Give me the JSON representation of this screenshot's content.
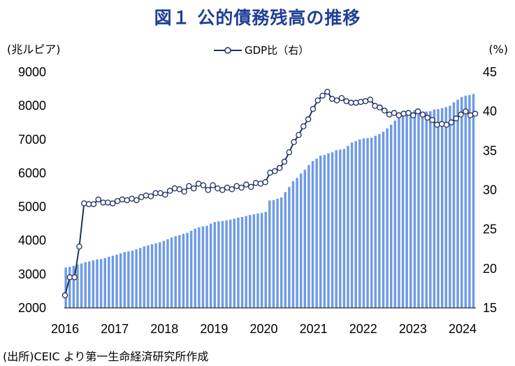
{
  "title": "図１ 公的債務残高の推移",
  "source": "(出所)CEIC より第一生命経済研究所作成",
  "chart_data": {
    "type": "bar",
    "title": "図１ 公的債務残高の推移",
    "left_axis_unit": "(兆ルピア)",
    "right_axis_unit": "(%)",
    "ylim_left": [
      2000,
      9000
    ],
    "yticks_left": [
      2000,
      3000,
      4000,
      5000,
      6000,
      7000,
      8000,
      9000
    ],
    "ylim_right": [
      15,
      45
    ],
    "yticks_right": [
      15,
      20,
      25,
      30,
      35,
      40,
      45
    ],
    "x_ticks": [
      "2016",
      "2017",
      "2018",
      "2019",
      "2020",
      "2021",
      "2022",
      "2023",
      "2024"
    ],
    "grid": false,
    "bar_color": "#6f9be6",
    "line_color": "#1f3060",
    "series": [
      {
        "name": "公的債務残高",
        "axis": "left",
        "kind": "bar",
        "values": [
          3200,
          3220,
          3250,
          3290,
          3320,
          3360,
          3380,
          3410,
          3440,
          3450,
          3480,
          3520,
          3550,
          3580,
          3620,
          3660,
          3680,
          3700,
          3740,
          3780,
          3830,
          3860,
          3890,
          3920,
          3950,
          3990,
          4040,
          4090,
          4130,
          4160,
          4200,
          4230,
          4290,
          4350,
          4390,
          4420,
          4440,
          4500,
          4550,
          4570,
          4580,
          4600,
          4620,
          4650,
          4680,
          4700,
          4730,
          4760,
          4780,
          4800,
          4820,
          4850,
          5190,
          5200,
          5240,
          5280,
          5440,
          5590,
          5760,
          5860,
          5990,
          6100,
          6240,
          6360,
          6430,
          6520,
          6540,
          6590,
          6620,
          6680,
          6700,
          6720,
          6810,
          6910,
          6950,
          7000,
          7030,
          7040,
          7050,
          7110,
          7160,
          7230,
          7330,
          7440,
          7560,
          7640,
          7730,
          7790,
          7810,
          7870,
          7880,
          7820,
          7830,
          7840,
          7890,
          7900,
          7930,
          7960,
          8000,
          8100,
          8180,
          8260,
          8300,
          8320,
          8350
        ]
      },
      {
        "name": "GDP比（右）",
        "axis": "right",
        "kind": "line",
        "values": [
          16.6,
          18.9,
          18.9,
          22.8,
          28.3,
          28.2,
          28.2,
          28.8,
          28.4,
          28.4,
          28.3,
          28.6,
          28.8,
          28.7,
          28.9,
          28.7,
          29.1,
          29.3,
          29.2,
          29.6,
          29.6,
          29.4,
          29.9,
          30.2,
          30.1,
          29.8,
          30.5,
          30.2,
          30.8,
          30.6,
          30.0,
          30.6,
          30.2,
          30.0,
          30.3,
          30.1,
          30.5,
          30.3,
          30.7,
          30.4,
          30.9,
          30.8,
          31.0,
          32.2,
          32.4,
          32.8,
          33.6,
          34.8,
          36.1,
          37.0,
          38.1,
          39.0,
          40.3,
          41.4,
          42.0,
          42.5,
          41.6,
          41.4,
          41.7,
          41.3,
          41.1,
          41.1,
          41.2,
          41.3,
          41.5,
          40.7,
          40.5,
          40.1,
          39.6,
          39.8,
          39.5,
          39.7,
          39.8,
          39.5,
          40.0,
          39.6,
          39.2,
          38.9,
          38.3,
          38.4,
          38.3,
          38.6,
          39.1,
          39.6,
          40.0,
          39.5,
          39.7
        ]
      }
    ]
  }
}
